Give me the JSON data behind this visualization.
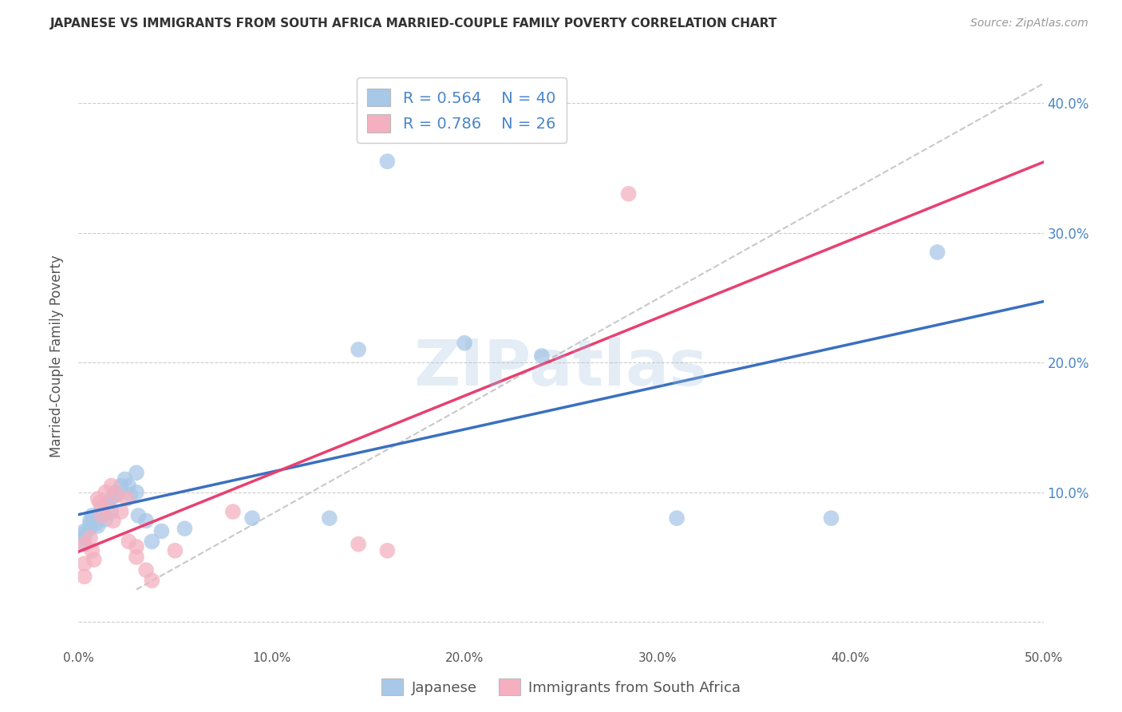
{
  "title": "JAPANESE VS IMMIGRANTS FROM SOUTH AFRICA MARRIED-COUPLE FAMILY POVERTY CORRELATION CHART",
  "source": "Source: ZipAtlas.com",
  "ylabel": "Married-Couple Family Poverty",
  "xlim": [
    0.0,
    0.5
  ],
  "ylim": [
    -0.02,
    0.43
  ],
  "xticks": [
    0.0,
    0.1,
    0.2,
    0.3,
    0.4,
    0.5
  ],
  "yticks": [
    0.0,
    0.1,
    0.2,
    0.3,
    0.4
  ],
  "xtick_labels": [
    "0.0%",
    "10.0%",
    "20.0%",
    "30.0%",
    "40.0%",
    "50.0%"
  ],
  "ytick_labels_right": [
    "",
    "10.0%",
    "20.0%",
    "30.0%",
    "40.0%"
  ],
  "blue_color": "#a8c8e8",
  "pink_color": "#f4b0c0",
  "blue_line_color": "#3a70c0",
  "pink_line_color": "#e84070",
  "diagonal_color": "#c8c8c8",
  "watermark": "ZIPatlas",
  "legend_R_blue": "0.564",
  "legend_N_blue": "40",
  "legend_R_pink": "0.786",
  "legend_N_pink": "26",
  "legend_value_color": "#4a86c8",
  "japanese_dots": [
    [
      0.003,
      0.065
    ],
    [
      0.003,
      0.07
    ],
    [
      0.003,
      0.068
    ],
    [
      0.003,
      0.06
    ],
    [
      0.006,
      0.072
    ],
    [
      0.006,
      0.075
    ],
    [
      0.006,
      0.078
    ],
    [
      0.007,
      0.082
    ],
    [
      0.008,
      0.08
    ],
    [
      0.009,
      0.076
    ],
    [
      0.01,
      0.082
    ],
    [
      0.01,
      0.074
    ],
    [
      0.012,
      0.088
    ],
    [
      0.013,
      0.083
    ],
    [
      0.014,
      0.079
    ],
    [
      0.015,
      0.092
    ],
    [
      0.017,
      0.095
    ],
    [
      0.017,
      0.085
    ],
    [
      0.019,
      0.1
    ],
    [
      0.02,
      0.098
    ],
    [
      0.022,
      0.105
    ],
    [
      0.024,
      0.11
    ],
    [
      0.026,
      0.105
    ],
    [
      0.027,
      0.098
    ],
    [
      0.03,
      0.115
    ],
    [
      0.03,
      0.1
    ],
    [
      0.031,
      0.082
    ],
    [
      0.035,
      0.078
    ],
    [
      0.038,
      0.062
    ],
    [
      0.043,
      0.07
    ],
    [
      0.055,
      0.072
    ],
    [
      0.09,
      0.08
    ],
    [
      0.13,
      0.08
    ],
    [
      0.145,
      0.21
    ],
    [
      0.16,
      0.355
    ],
    [
      0.2,
      0.215
    ],
    [
      0.24,
      0.205
    ],
    [
      0.31,
      0.08
    ],
    [
      0.39,
      0.08
    ],
    [
      0.445,
      0.285
    ]
  ],
  "pink_dots": [
    [
      0.003,
      0.06
    ],
    [
      0.003,
      0.035
    ],
    [
      0.003,
      0.045
    ],
    [
      0.006,
      0.065
    ],
    [
      0.007,
      0.055
    ],
    [
      0.008,
      0.048
    ],
    [
      0.01,
      0.095
    ],
    [
      0.011,
      0.092
    ],
    [
      0.012,
      0.082
    ],
    [
      0.014,
      0.1
    ],
    [
      0.015,
      0.088
    ],
    [
      0.017,
      0.105
    ],
    [
      0.018,
      0.078
    ],
    [
      0.02,
      0.098
    ],
    [
      0.022,
      0.085
    ],
    [
      0.025,
      0.095
    ],
    [
      0.026,
      0.062
    ],
    [
      0.03,
      0.058
    ],
    [
      0.03,
      0.05
    ],
    [
      0.035,
      0.04
    ],
    [
      0.038,
      0.032
    ],
    [
      0.05,
      0.055
    ],
    [
      0.08,
      0.085
    ],
    [
      0.145,
      0.06
    ],
    [
      0.16,
      0.055
    ],
    [
      0.285,
      0.33
    ]
  ],
  "background_color": "#ffffff",
  "grid_color": "#cccccc"
}
